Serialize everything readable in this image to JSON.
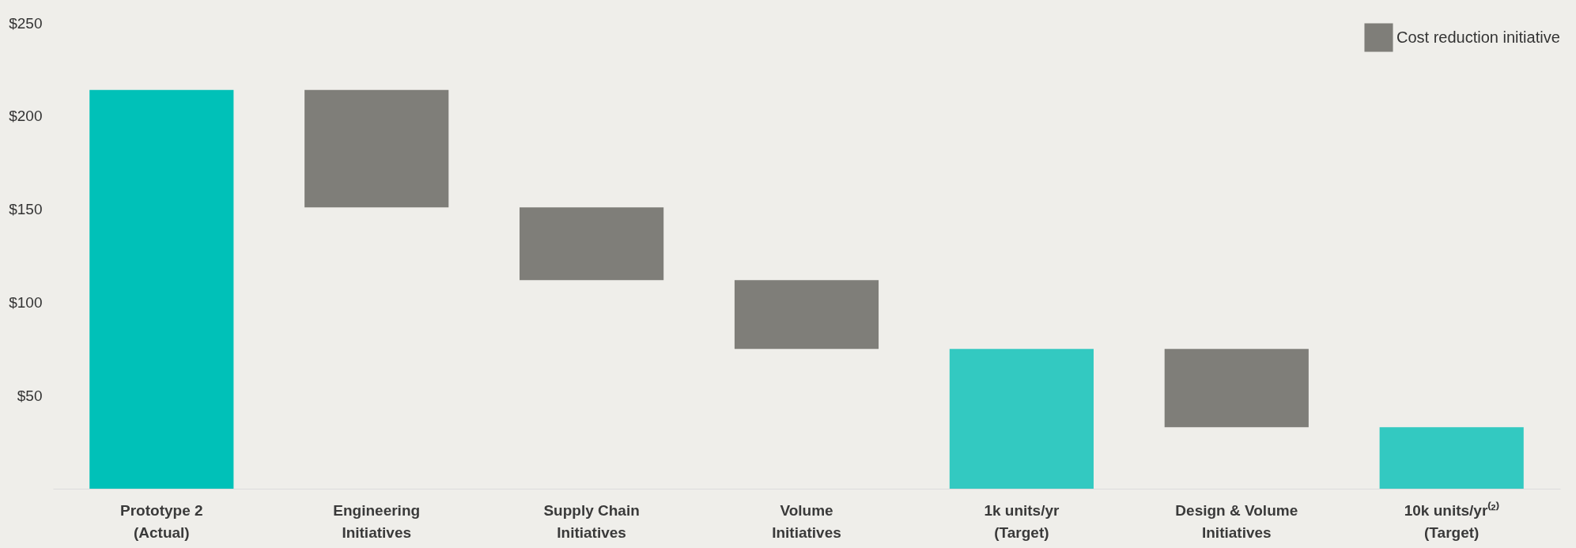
{
  "chart_data": {
    "type": "bar",
    "categories": [
      "Prototype 2\n(Actual)",
      "Engineering\nInitiatives",
      "Supply Chain\nInitiatives",
      "Volume\nInitiatives",
      "1k units/yr\n(Target)",
      "Design & Volume\nInitiatives",
      "10k units/yr⁽²⁾\n(Target)"
    ],
    "series": [
      {
        "color": "#00c1b8",
        "values": [
          214,
          null,
          null,
          null,
          null,
          null,
          null
        ]
      },
      {
        "color": "#33c9c1",
        "values": [
          null,
          null,
          null,
          null,
          75,
          null,
          33
        ]
      },
      {
        "name": "Cost reduction initiative",
        "color": "#7f7e79",
        "base": [
          null,
          151,
          112,
          75,
          null,
          33,
          null
        ],
        "values": [
          null,
          63,
          39,
          37,
          null,
          42,
          null
        ]
      }
    ],
    "ylim": [
      0,
      250
    ],
    "yticks": [
      {
        "value": 50,
        "label": "$50"
      },
      {
        "value": 100,
        "label": "$100"
      },
      {
        "value": 150,
        "label": "$150"
      },
      {
        "value": 200,
        "label": "$200"
      },
      {
        "value": 250,
        "label": "$250"
      }
    ],
    "grid": false,
    "legend": "top right"
  }
}
